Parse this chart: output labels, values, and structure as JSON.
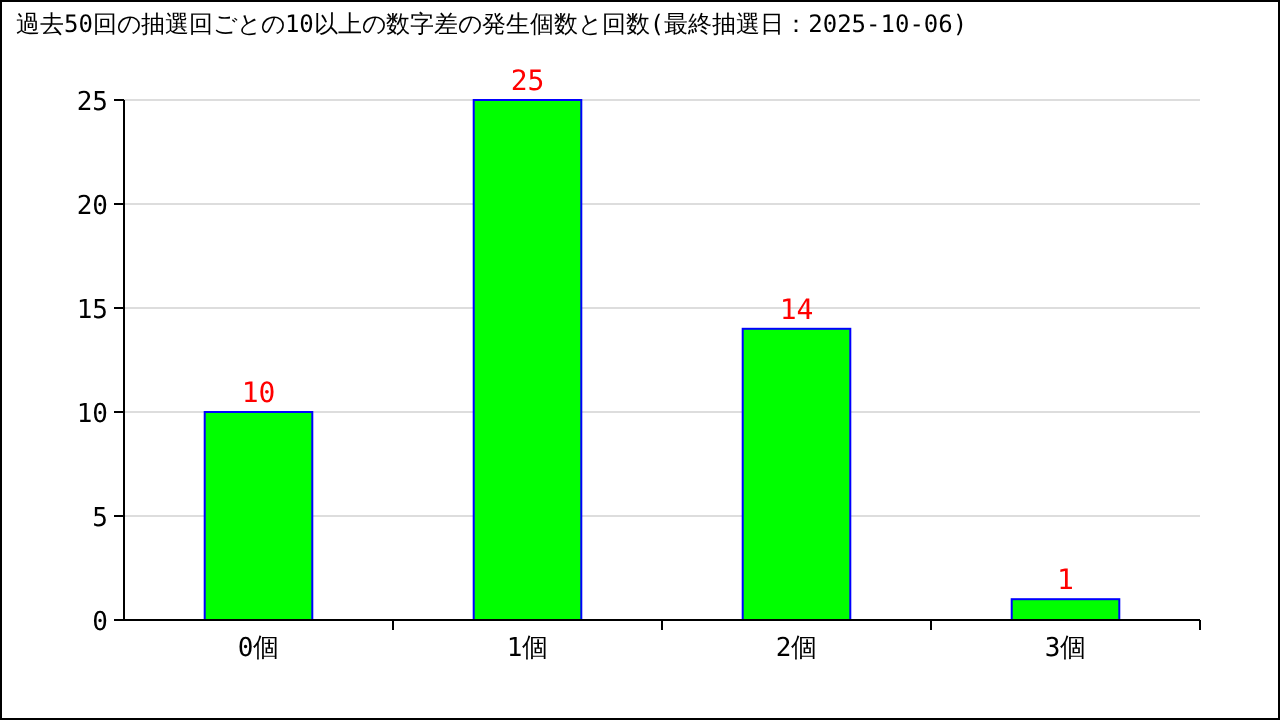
{
  "chart_data": {
    "type": "bar",
    "title": "過去50回の抽選回ごとの10以上の数字差の発生個数と回数(最終抽選日：2025-10-06)",
    "categories": [
      "0個",
      "1個",
      "2個",
      "3個"
    ],
    "values": [
      10,
      25,
      14,
      1
    ],
    "color": "#00ff00",
    "ylim": [
      0,
      25
    ],
    "yticks": [
      0,
      5,
      10,
      15,
      20,
      25
    ],
    "grid": "y",
    "data_labels": true
  }
}
